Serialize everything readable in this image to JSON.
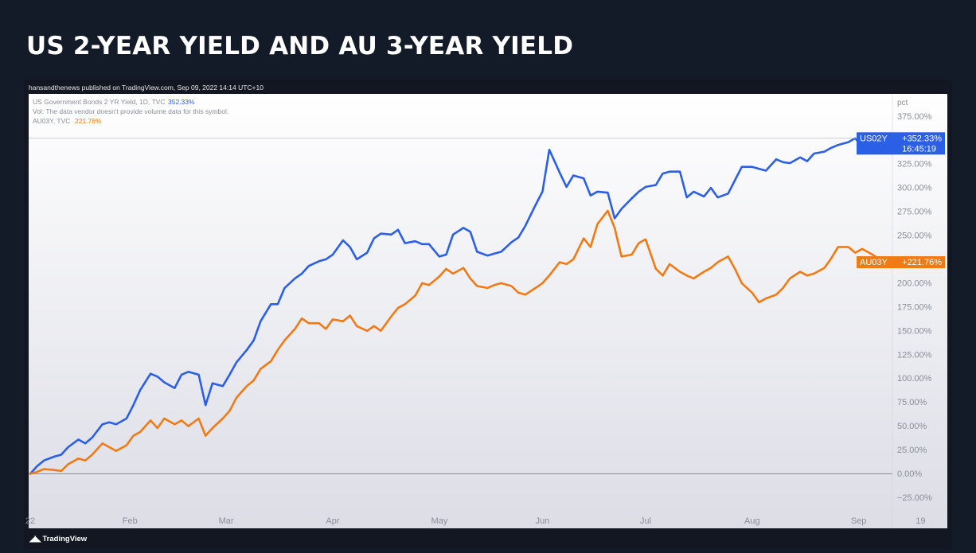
{
  "slide": {
    "title": "US 2-YEAR YIELD AND AU 3-YEAR YIELD"
  },
  "published": "hansandthenews published on TradingView.com, Sep 09, 2022 14:14 UTC+10",
  "footer": {
    "logo_text": "TradingView"
  },
  "colors": {
    "us": "#2a5fe6",
    "au": "#f07a13",
    "page_bg": "#141b28",
    "chart_bg_top": "#ffffff",
    "chart_bg_bottom": "#dcdde6"
  },
  "chart_data": {
    "type": "line",
    "title": "US 2-YEAR YIELD AND AU 3-YEAR YIELD",
    "xlabel": "",
    "ylabel": "pct",
    "ylim": [
      -35,
      395
    ],
    "grid": false,
    "yticks": [
      {
        "value": 375,
        "label": "375.00%"
      },
      {
        "value": 350,
        "label": "350.00%"
      },
      {
        "value": 325,
        "label": "325.00%"
      },
      {
        "value": 300,
        "label": "300.00%"
      },
      {
        "value": 275,
        "label": "275.00%"
      },
      {
        "value": 250,
        "label": "250.00%"
      },
      {
        "value": 225,
        "label": "225.00%"
      },
      {
        "value": 200,
        "label": "200.00%"
      },
      {
        "value": 175,
        "label": "175.00%"
      },
      {
        "value": 150,
        "label": "150.00%"
      },
      {
        "value": 125,
        "label": "125.00%"
      },
      {
        "value": 100,
        "label": "100.00%"
      },
      {
        "value": 75,
        "label": "75.00%"
      },
      {
        "value": 50,
        "label": "50.00%"
      },
      {
        "value": 25,
        "label": "25.00%"
      },
      {
        "value": 0,
        "label": "0.00%"
      },
      {
        "value": -25,
        "label": "−25.00%"
      }
    ],
    "xticks": [
      {
        "label": "22",
        "date": "2022-01-03"
      },
      {
        "label": "Feb",
        "date": "2022-02-01"
      },
      {
        "label": "Mar",
        "date": "2022-03-01"
      },
      {
        "label": "Apr",
        "date": "2022-04-01"
      },
      {
        "label": "May",
        "date": "2022-05-02"
      },
      {
        "label": "Jun",
        "date": "2022-06-01"
      },
      {
        "label": "Jul",
        "date": "2022-07-01"
      },
      {
        "label": "Aug",
        "date": "2022-08-01"
      },
      {
        "label": "Sep",
        "date": "2022-09-01"
      },
      {
        "label": "19",
        "date": "2022-09-19"
      }
    ],
    "x": [
      "2022-01-03",
      "2022-01-05",
      "2022-01-07",
      "2022-01-10",
      "2022-01-12",
      "2022-01-14",
      "2022-01-17",
      "2022-01-19",
      "2022-01-21",
      "2022-01-24",
      "2022-01-26",
      "2022-01-28",
      "2022-01-31",
      "2022-02-02",
      "2022-02-04",
      "2022-02-07",
      "2022-02-09",
      "2022-02-11",
      "2022-02-14",
      "2022-02-16",
      "2022-02-18",
      "2022-02-21",
      "2022-02-23",
      "2022-02-25",
      "2022-02-28",
      "2022-03-02",
      "2022-03-04",
      "2022-03-07",
      "2022-03-09",
      "2022-03-11",
      "2022-03-14",
      "2022-03-16",
      "2022-03-18",
      "2022-03-21",
      "2022-03-23",
      "2022-03-25",
      "2022-03-28",
      "2022-03-30",
      "2022-04-01",
      "2022-04-04",
      "2022-04-06",
      "2022-04-08",
      "2022-04-11",
      "2022-04-13",
      "2022-04-15",
      "2022-04-18",
      "2022-04-20",
      "2022-04-22",
      "2022-04-25",
      "2022-04-27",
      "2022-04-29",
      "2022-05-02",
      "2022-05-04",
      "2022-05-06",
      "2022-05-09",
      "2022-05-11",
      "2022-05-13",
      "2022-05-16",
      "2022-05-18",
      "2022-05-20",
      "2022-05-23",
      "2022-05-25",
      "2022-05-27",
      "2022-05-30",
      "2022-06-01",
      "2022-06-03",
      "2022-06-06",
      "2022-06-08",
      "2022-06-10",
      "2022-06-13",
      "2022-06-15",
      "2022-06-17",
      "2022-06-20",
      "2022-06-22",
      "2022-06-24",
      "2022-06-27",
      "2022-06-29",
      "2022-07-01",
      "2022-07-04",
      "2022-07-06",
      "2022-07-08",
      "2022-07-11",
      "2022-07-13",
      "2022-07-15",
      "2022-07-18",
      "2022-07-20",
      "2022-07-22",
      "2022-07-25",
      "2022-07-27",
      "2022-07-29",
      "2022-08-01",
      "2022-08-03",
      "2022-08-05",
      "2022-08-08",
      "2022-08-10",
      "2022-08-12",
      "2022-08-15",
      "2022-08-17",
      "2022-08-19",
      "2022-08-22",
      "2022-08-24",
      "2022-08-26",
      "2022-08-29",
      "2022-08-31",
      "2022-09-02",
      "2022-09-05",
      "2022-09-07",
      "2022-09-09"
    ],
    "series": [
      {
        "name": "US02Y",
        "legend": "US Government Bonds 2 YR Yield, 1D, TVC",
        "last_label": "352.33%",
        "price_label": "+352.33%",
        "countdown": "16:45:19",
        "color": "#2a5fe6",
        "values": [
          0,
          8,
          14,
          18,
          20,
          28,
          36,
          32,
          38,
          52,
          54,
          52,
          58,
          72,
          88,
          105,
          102,
          96,
          90,
          104,
          107,
          104,
          72,
          95,
          92,
          104,
          117,
          130,
          140,
          160,
          178,
          178,
          195,
          205,
          210,
          218,
          223,
          225,
          230,
          245,
          238,
          225,
          232,
          247,
          252,
          251,
          256,
          242,
          244,
          241,
          241,
          228,
          230,
          251,
          258,
          254,
          233,
          229,
          231,
          233,
          243,
          248,
          260,
          282,
          296,
          340,
          316,
          301,
          313,
          310,
          292,
          296,
          295,
          268,
          278,
          289,
          296,
          301,
          303,
          315,
          317,
          317,
          290,
          296,
          291,
          300,
          290,
          294,
          308,
          322,
          322,
          320,
          318,
          330,
          327,
          326,
          332,
          328,
          336,
          338,
          342,
          345,
          348,
          352,
          343,
          355,
          348,
          352
        ]
      },
      {
        "name": "AU03Y",
        "legend": "AU03Y, TVC",
        "last_label": "221.76%",
        "price_label": "+221.76%",
        "color": "#f07a13",
        "values": [
          0,
          2,
          5,
          4,
          3,
          10,
          16,
          14,
          20,
          32,
          28,
          24,
          30,
          40,
          44,
          56,
          48,
          58,
          52,
          56,
          50,
          58,
          40,
          48,
          58,
          66,
          80,
          92,
          98,
          110,
          118,
          130,
          140,
          152,
          163,
          158,
          158,
          152,
          162,
          160,
          166,
          155,
          150,
          155,
          150,
          165,
          174,
          178,
          187,
          200,
          198,
          207,
          215,
          210,
          216,
          205,
          197,
          195,
          198,
          200,
          197,
          190,
          188,
          195,
          200,
          208,
          222,
          220,
          225,
          247,
          238,
          262,
          276,
          258,
          228,
          230,
          242,
          246,
          215,
          208,
          220,
          212,
          208,
          205,
          212,
          216,
          222,
          228,
          215,
          200,
          190,
          180,
          184,
          188,
          195,
          205,
          212,
          208,
          210,
          216,
          226,
          238,
          238,
          232,
          236,
          230,
          225,
          222
        ]
      }
    ]
  },
  "legend_lines": {
    "us_text": "US Government Bonds 2 YR Yield, 1D, TVC",
    "us_value": "352.33%",
    "vol_text": "Vol: The data vendor doesn't provide volume data for this symbol.",
    "au_text": "AU03Y, TVC",
    "au_value": "221.76%"
  }
}
